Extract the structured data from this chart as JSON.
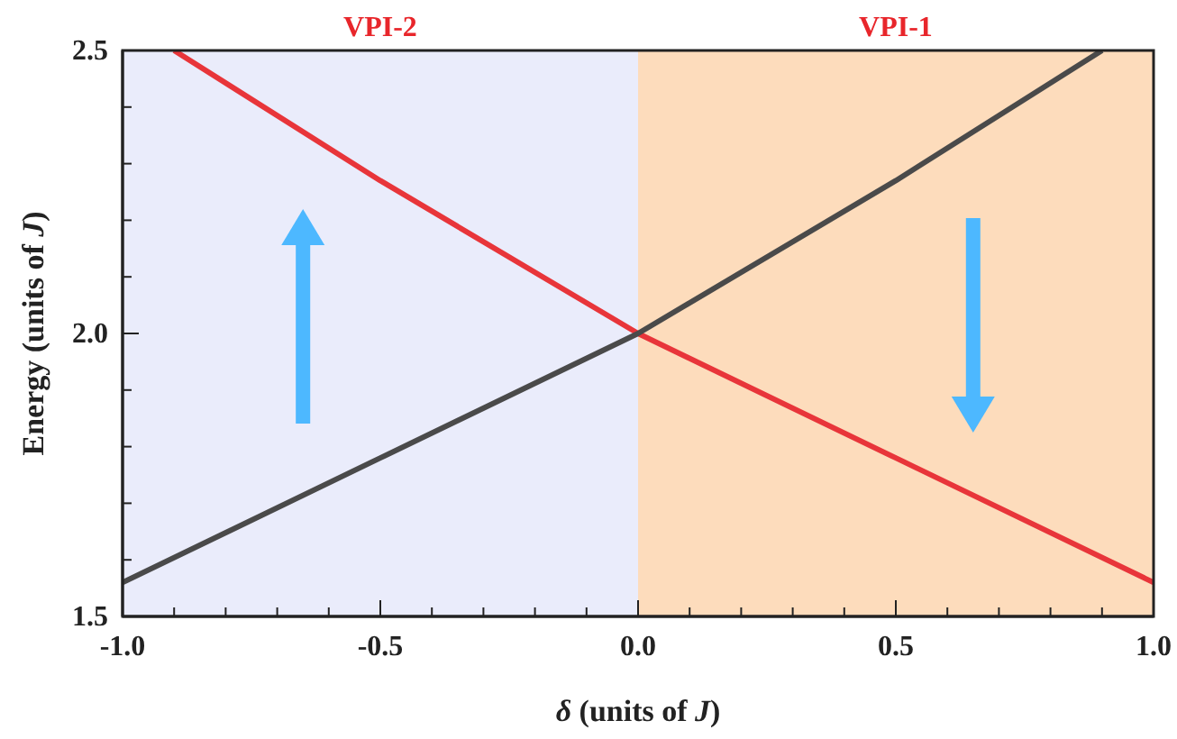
{
  "chart_data": {
    "type": "line",
    "xlabel": "δ (units of J)",
    "ylabel": "Energy (units of J)",
    "xlim": [
      -1,
      1
    ],
    "ylim": [
      1.5,
      2.5
    ],
    "xticks": [
      {
        "value": -1,
        "label": "-1.0"
      },
      {
        "value": -0.9,
        "label": null
      },
      {
        "value": -0.8,
        "label": null
      },
      {
        "value": -0.7,
        "label": null
      },
      {
        "value": -0.6,
        "label": null
      },
      {
        "value": -0.5,
        "label": "-0.5"
      },
      {
        "value": -0.4,
        "label": null
      },
      {
        "value": -0.3,
        "label": null
      },
      {
        "value": -0.2,
        "label": null
      },
      {
        "value": -0.1,
        "label": null
      },
      {
        "value": 0,
        "label": "0.0"
      },
      {
        "value": 0.1,
        "label": null
      },
      {
        "value": 0.2,
        "label": null
      },
      {
        "value": 0.3,
        "label": null
      },
      {
        "value": 0.4,
        "label": null
      },
      {
        "value": 0.5,
        "label": "0.5"
      },
      {
        "value": 0.6,
        "label": null
      },
      {
        "value": 0.7,
        "label": null
      },
      {
        "value": 0.8,
        "label": null
      },
      {
        "value": 0.9,
        "label": null
      },
      {
        "value": 1,
        "label": "1.0"
      }
    ],
    "yticks": [
      {
        "value": 1.5,
        "label": "1.5"
      },
      {
        "value": 1.6,
        "label": null
      },
      {
        "value": 1.7,
        "label": null
      },
      {
        "value": 1.8,
        "label": null
      },
      {
        "value": 1.9,
        "label": null
      },
      {
        "value": 2,
        "label": "2.0"
      },
      {
        "value": 2.1,
        "label": null
      },
      {
        "value": 2.2,
        "label": null
      },
      {
        "value": 2.3,
        "label": null
      },
      {
        "value": 2.4,
        "label": null
      },
      {
        "value": 2.5,
        "label": "2.5"
      }
    ],
    "bands": [
      {
        "axis": "x",
        "from": -1,
        "to": 0,
        "label": "VPI-2",
        "color": "#eaecfb"
      },
      {
        "axis": "x",
        "from": 0,
        "to": 1,
        "label": "VPI-1",
        "color": "#fddcbc"
      }
    ],
    "series": [
      {
        "color": "#e8353a",
        "x": [
          -0.9,
          -0.5,
          0,
          0.5,
          1
        ],
        "values": [
          2.5,
          2.27,
          2.0,
          1.78,
          1.56
        ]
      },
      {
        "color": "#4a4a4a",
        "x": [
          -1,
          -0.5,
          0,
          0.5,
          0.9
        ],
        "values": [
          1.56,
          1.78,
          2.0,
          2.27,
          2.5
        ]
      }
    ],
    "marker": "none",
    "line_style": "solid",
    "grid": false
  }
}
